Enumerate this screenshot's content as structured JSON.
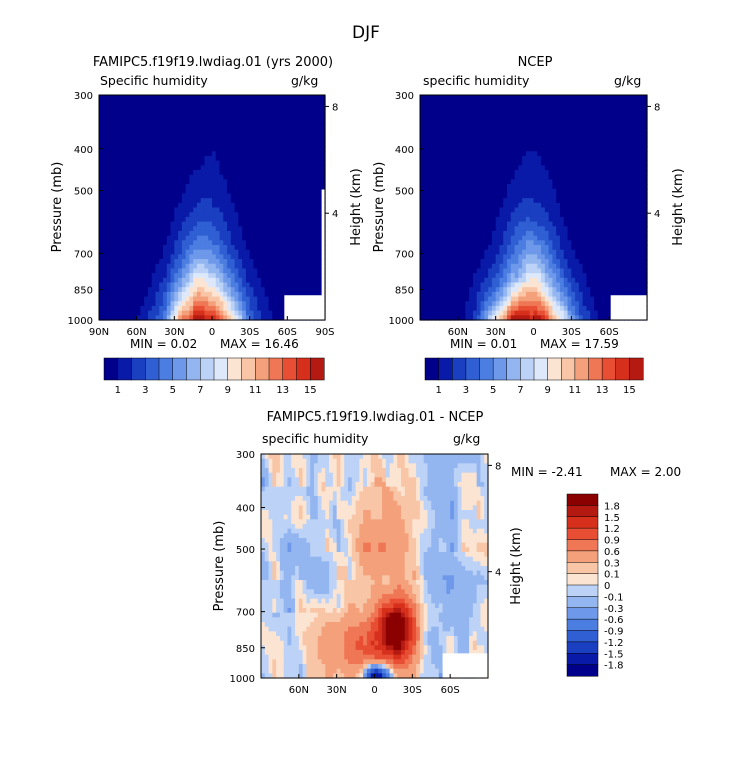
{
  "page": {
    "title": "DJF"
  },
  "colors": {
    "blues": [
      "#00008b",
      "#0a1aa8",
      "#1a3fc0",
      "#2f5fd3",
      "#4c7de0",
      "#6e99ea",
      "#94b6f0",
      "#bcd2f6",
      "#dde8fb"
    ],
    "reds": [
      "#fbe5d2",
      "#f8c6a6",
      "#f4a07b",
      "#ef7755",
      "#e84e33",
      "#d6301d",
      "#b51a12",
      "#8b0000"
    ],
    "missing": "#ffffff",
    "frame": "#000000"
  },
  "chart_data": [
    {
      "id": "model",
      "type": "heatmap",
      "title": "FAMIPC5.f19f19.lwdiag.01 (yrs 2000)",
      "left_label": "Specific humidity",
      "right_label": "g/kg",
      "ylabel": "Pressure (mb)",
      "ylabel_right": "Height (km)",
      "x_ticks": [
        "90N",
        "60N",
        "30N",
        "0",
        "30S",
        "60S",
        "90S"
      ],
      "y_ticks": [
        "300",
        "400",
        "500",
        "700",
        "850",
        "1000"
      ],
      "height_ticks": [
        "8",
        "4"
      ],
      "min_label": "MIN = 0.02",
      "max_label": "MAX = 16.46",
      "min": 0.02,
      "max": 16.46,
      "colorbar_ticks": [
        "1",
        "3",
        "5",
        "7",
        "9",
        "11",
        "13",
        "15"
      ],
      "colorbar_levels": [
        1,
        2,
        3,
        4,
        5,
        6,
        7,
        8,
        9,
        10,
        11,
        12,
        13,
        14,
        15
      ],
      "peak_lat": 5,
      "peak_value": 16.46
    },
    {
      "id": "obs",
      "type": "heatmap",
      "title": "NCEP",
      "left_label": "specific humidity",
      "right_label": "g/kg",
      "ylabel": "Pressure (mb)",
      "ylabel_right": "Height (km)",
      "x_ticks": [
        "60N",
        "30N",
        "0",
        "30S",
        "60S"
      ],
      "y_ticks": [
        "300",
        "400",
        "500",
        "700",
        "850",
        "1000"
      ],
      "height_ticks": [
        "8",
        "4"
      ],
      "min_label": "MIN = 0.01",
      "max_label": "MAX = 17.59",
      "min": 0.01,
      "max": 17.59,
      "colorbar_ticks": [
        "1",
        "3",
        "5",
        "7",
        "9",
        "11",
        "13",
        "15"
      ],
      "colorbar_levels": [
        1,
        2,
        3,
        4,
        5,
        6,
        7,
        8,
        9,
        10,
        11,
        12,
        13,
        14,
        15
      ],
      "peak_lat": 3,
      "peak_value": 17.59
    },
    {
      "id": "diff",
      "type": "heatmap",
      "title": "FAMIPC5.f19f19.lwdiag.01 - NCEP",
      "left_label": "specific humidity",
      "right_label": "g/kg",
      "ylabel": "Pressure (mb)",
      "ylabel_right": "Height (km)",
      "x_ticks": [
        "60N",
        "30N",
        "0",
        "30S",
        "60S"
      ],
      "y_ticks": [
        "300",
        "400",
        "500",
        "700",
        "850",
        "1000"
      ],
      "height_ticks": [
        "8",
        "4"
      ],
      "min_label": "MIN = -2.41",
      "max_label": "MAX = 2.00",
      "min": -2.41,
      "max": 2.0,
      "colorbar_labels": [
        "1.8",
        "1.5",
        "1.2",
        "0.9",
        "0.6",
        "0.3",
        "0.1",
        "0",
        "-0.1",
        "-0.3",
        "-0.6",
        "-0.9",
        "-1.2",
        "-1.5",
        "-1.8"
      ],
      "colorbar_levels": [
        -1.8,
        -1.5,
        -1.2,
        -0.9,
        -0.6,
        -0.3,
        -0.1,
        0,
        0.1,
        0.3,
        0.6,
        0.9,
        1.2,
        1.5,
        1.8
      ]
    }
  ]
}
